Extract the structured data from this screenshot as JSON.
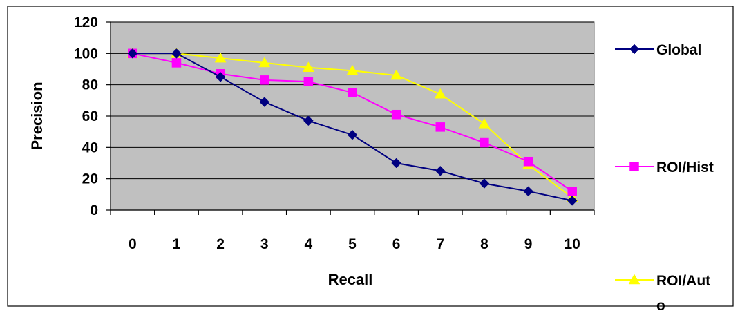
{
  "chart_data": {
    "type": "line",
    "title": "",
    "xlabel": "Recall",
    "ylabel": "Precision",
    "categories": [
      "0",
      "1",
      "2",
      "3",
      "4",
      "5",
      "6",
      "7",
      "8",
      "9",
      "10"
    ],
    "ylim": [
      0,
      120
    ],
    "yticks": [
      "0",
      "20",
      "40",
      "60",
      "80",
      "100",
      "120"
    ],
    "grid": "horizontal",
    "plot_background": "#c0c0c0",
    "legend_position": "right",
    "series": [
      {
        "name": "Global",
        "legend_lines": [
          "Global"
        ],
        "color": "#000080",
        "marker": "diamond",
        "values": [
          100,
          100,
          85,
          69,
          57,
          48,
          30,
          25,
          17,
          12,
          6
        ]
      },
      {
        "name": "ROI/Hist",
        "legend_lines": [
          "ROI/Hist"
        ],
        "color": "#ff00ff",
        "marker": "square",
        "values": [
          100,
          94,
          87,
          83,
          82,
          75,
          61,
          53,
          43,
          31,
          12
        ]
      },
      {
        "name": "ROI/Auto",
        "legend_lines": [
          "ROI/Aut",
          "o"
        ],
        "color": "#ffff00",
        "marker": "triangle",
        "values": [
          100,
          100,
          97,
          94,
          91,
          89,
          86,
          74,
          55,
          29,
          8
        ]
      }
    ]
  }
}
